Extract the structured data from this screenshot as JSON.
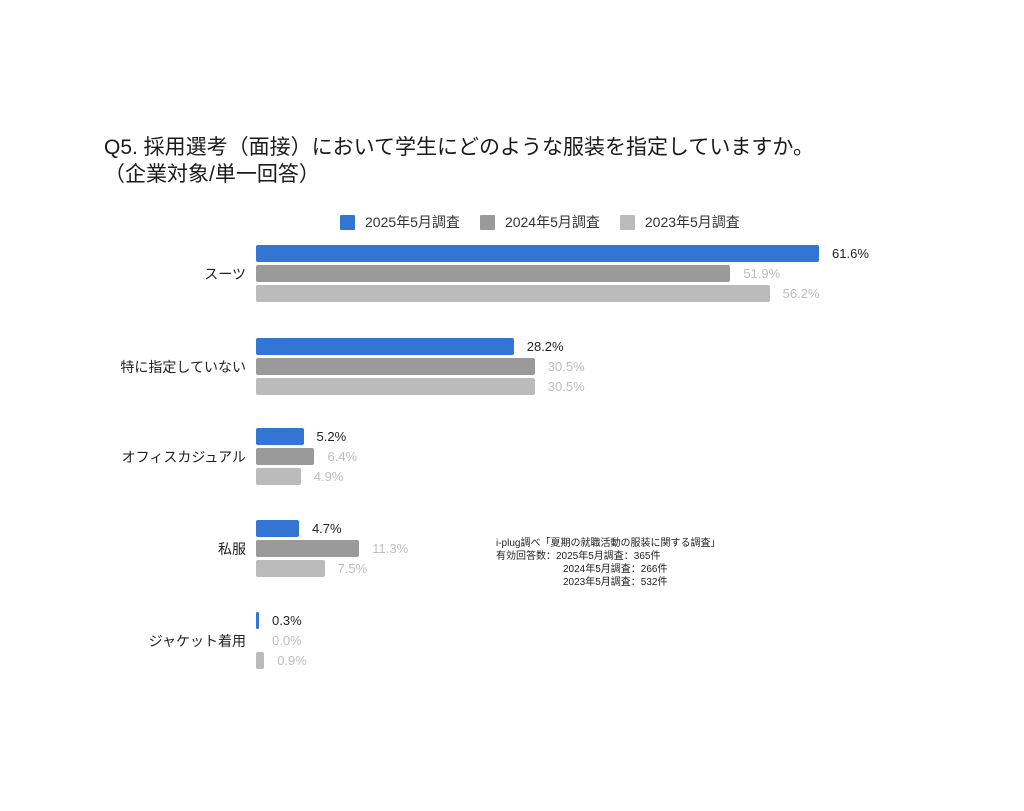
{
  "title": {
    "line1": "Q5. 採用選考（面接）において学生にどのような服装を指定していますか。",
    "line2": "（企業対象/単一回答）"
  },
  "legend": [
    {
      "label": "2025年5月調査",
      "color": "#3375d2"
    },
    {
      "label": "2024年5月調査",
      "color": "#9a9a9a"
    },
    {
      "label": "2023年5月調査",
      "color": "#bbbbbb"
    }
  ],
  "note": {
    "line1": "i-plug調べ「夏期の就職活動の服装に関する調査」",
    "line2": "有効回答数：2025年5月調査：365件",
    "line3": "2024年5月調査：266件",
    "line4": "2023年5月調査：532件"
  },
  "chart_data": {
    "type": "bar",
    "orientation": "horizontal",
    "title": "Q5. 採用選考（面接）において学生にどのような服装を指定していますか。（企業対象/単一回答）",
    "xlabel": "",
    "ylabel": "",
    "unit": "%",
    "grid": false,
    "legend_position": "top",
    "categories": [
      "スーツ",
      "特に指定していない",
      "オフィスカジュアル",
      "私服",
      "ジャケット着用"
    ],
    "series": [
      {
        "name": "2025年5月調査",
        "color": "#3375d2",
        "values": [
          61.6,
          28.2,
          5.2,
          4.7,
          0.3
        ],
        "labels": [
          "61.6%",
          "28.2%",
          "5.2%",
          "4.7%",
          "0.3%"
        ]
      },
      {
        "name": "2024年5月調査",
        "color": "#9a9a9a",
        "values": [
          51.9,
          30.5,
          6.4,
          11.3,
          0.0
        ],
        "labels": [
          "51.9%",
          "30.5%",
          "6.4%",
          "11.3%",
          "0.0%"
        ]
      },
      {
        "name": "2023年5月調査",
        "color": "#bbbbbb",
        "values": [
          56.2,
          30.5,
          4.9,
          7.5,
          0.9
        ],
        "labels": [
          "56.2%",
          "30.5%",
          "4.9%",
          "7.5%",
          "0.9%"
        ]
      }
    ],
    "annotations": [
      "i-plug調べ「夏期の就職活動の服装に関する調査」",
      "有効回答数：2025年5月調査：365件",
      "2024年5月調査：266件",
      "2023年5月調査：532件"
    ]
  }
}
